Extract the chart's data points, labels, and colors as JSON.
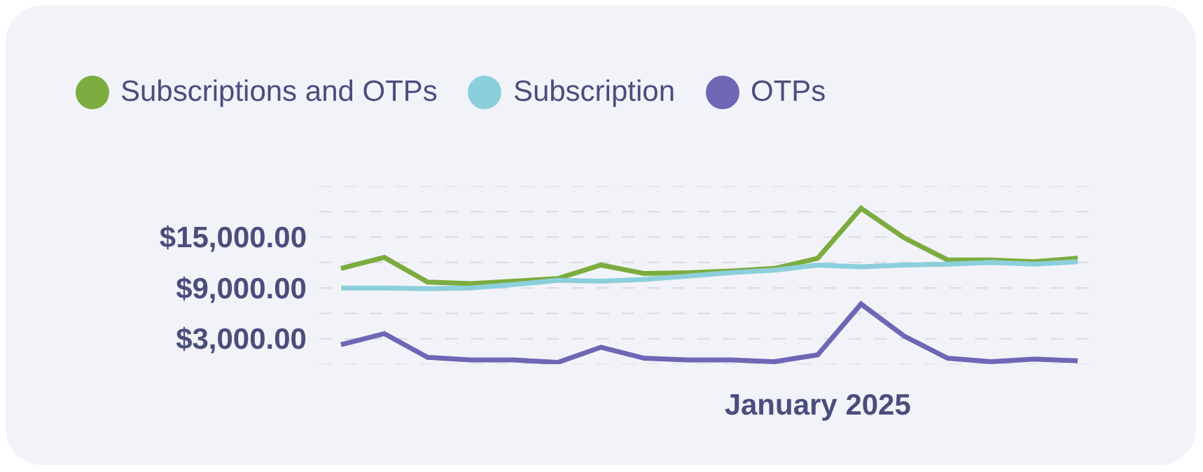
{
  "chart_data": {
    "type": "line",
    "categories": [
      null,
      null,
      null,
      null,
      null,
      null,
      null,
      null,
      null,
      null,
      null,
      "January 2025",
      null,
      null,
      null,
      null,
      null,
      null
    ],
    "series": [
      {
        "name": "Subscriptions and OTPs",
        "color": "#7cac3f",
        "values": [
          11300,
          12600,
          9700,
          9500,
          9800,
          10100,
          11700,
          10700,
          10800,
          11000,
          11300,
          12500,
          18400,
          14900,
          12300,
          12300,
          12100,
          12500
        ]
      },
      {
        "name": "Subscription",
        "color": "#8ccfdc",
        "values": [
          9000,
          9000,
          8900,
          9000,
          9400,
          9900,
          9800,
          10000,
          10400,
          10800,
          11100,
          11700,
          11500,
          11700,
          11800,
          12000,
          11800,
          12100
        ]
      },
      {
        "name": "OTPs",
        "color": "#6f66b5",
        "values": [
          2300,
          3600,
          800,
          500,
          500,
          200,
          2000,
          700,
          500,
          500,
          300,
          1100,
          7100,
          3300,
          700,
          300,
          600,
          400
        ]
      }
    ],
    "ylim": [
      0,
      21000
    ],
    "yticks": [
      {
        "value": 0,
        "label": null
      },
      {
        "value": 3000,
        "label": "$3,000.00"
      },
      {
        "value": 6000,
        "label": null
      },
      {
        "value": 9000,
        "label": "$9,000.00"
      },
      {
        "value": 12000,
        "label": null
      },
      {
        "value": 15000,
        "label": "$15,000.00"
      },
      {
        "value": 18000,
        "label": null
      },
      {
        "value": 21000,
        "label": null
      }
    ],
    "grid": true,
    "legend": "top left",
    "marker": "none",
    "line_style": "solid"
  }
}
